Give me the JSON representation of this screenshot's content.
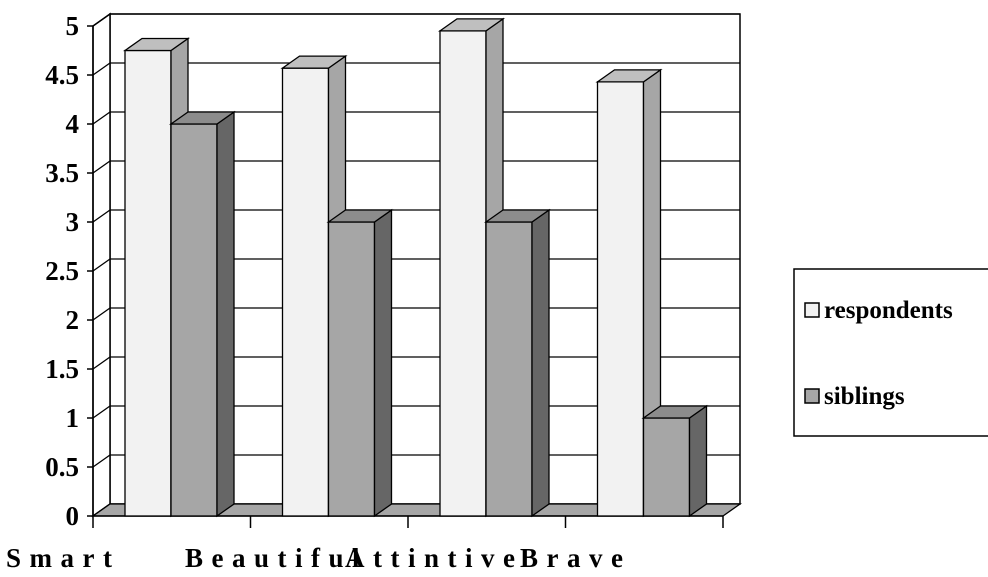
{
  "chart_data": {
    "type": "bar",
    "title": "",
    "xlabel": "",
    "ylabel": "",
    "categories": [
      "Smart",
      "Beautiful",
      "Attintive",
      "Brave"
    ],
    "series": [
      {
        "name": "respondents",
        "values": [
          4.75,
          4.57,
          4.95,
          4.43
        ],
        "color": "#f2f2f2"
      },
      {
        "name": "siblings",
        "values": [
          4,
          3,
          3,
          1
        ],
        "color": "#a6a6a6"
      }
    ],
    "ylim": [
      0,
      5
    ],
    "yticks": [
      "0",
      "0.5",
      "1",
      "1.5",
      "2",
      "2.5",
      "3",
      "3.5",
      "4",
      "4.5",
      "5"
    ],
    "grid": true,
    "legend": "right",
    "style": "3d-clustered-column"
  }
}
